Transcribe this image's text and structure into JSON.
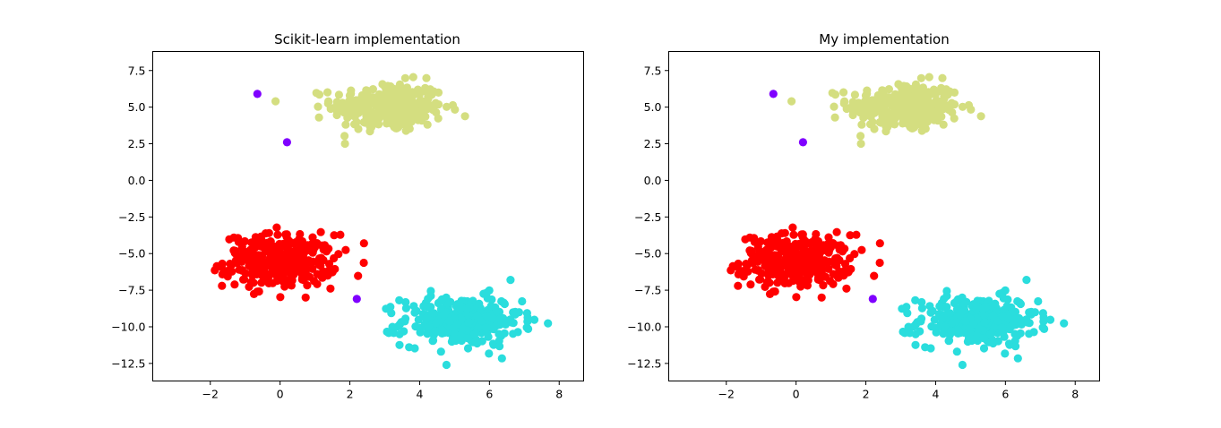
{
  "chart_data": [
    {
      "type": "scatter",
      "title": "Scikit-learn implementation",
      "xlabel": "",
      "ylabel": "",
      "xlim": [
        -3.65,
        8.7
      ],
      "ylim": [
        -13.7,
        8.8
      ],
      "xticks": [
        -2,
        0,
        2,
        4,
        6,
        8
      ],
      "yticks": [
        7.5,
        5.0,
        2.5,
        0.0,
        -2.5,
        -5.0,
        -7.5,
        -10.0,
        -12.5
      ],
      "xtick_labels": [
        "−2",
        "0",
        "2",
        "4",
        "6",
        "8"
      ],
      "ytick_labels": [
        "7.5",
        "5.0",
        "2.5",
        "0.0",
        "−2.5",
        "−5.0",
        "−7.5",
        "−10.0",
        "−12.5"
      ],
      "grid": false,
      "clusters": [
        {
          "color": "#d4de80",
          "center": [
            3.1,
            5.0
          ],
          "spread": [
            0.8,
            0.85
          ],
          "count": 300,
          "xrange": [
            -0.2,
            5.3
          ],
          "yrange": [
            2.5,
            7.9
          ]
        },
        {
          "color": "#ff0000",
          "center": [
            0.0,
            -5.5
          ],
          "spread": [
            0.8,
            0.9
          ],
          "count": 300,
          "xrange": [
            -3.2,
            2.5
          ],
          "yrange": [
            -8.0,
            -3.0
          ]
        },
        {
          "color": "#2adddd",
          "center": [
            5.2,
            -9.6
          ],
          "spread": [
            0.85,
            0.85
          ],
          "count": 300,
          "xrange": [
            2.6,
            8.1
          ],
          "yrange": [
            -12.6,
            -6.8
          ]
        }
      ],
      "outliers": {
        "color": "#7f00ff",
        "points": [
          [
            -0.65,
            5.9
          ],
          [
            0.2,
            2.6
          ],
          [
            2.2,
            -8.1
          ]
        ]
      }
    },
    {
      "type": "scatter",
      "title": "My implementation",
      "xlabel": "",
      "ylabel": "",
      "xlim": [
        -3.65,
        8.7
      ],
      "ylim": [
        -13.7,
        8.8
      ],
      "xticks": [
        -2,
        0,
        2,
        4,
        6,
        8
      ],
      "yticks": [
        7.5,
        5.0,
        2.5,
        0.0,
        -2.5,
        -5.0,
        -7.5,
        -10.0,
        -12.5
      ],
      "xtick_labels": [
        "−2",
        "0",
        "2",
        "4",
        "6",
        "8"
      ],
      "ytick_labels": [
        "7.5",
        "5.0",
        "2.5",
        "0.0",
        "−2.5",
        "−5.0",
        "−7.5",
        "−10.0",
        "−12.5"
      ],
      "grid": false,
      "clusters": [
        {
          "color": "#d4de80",
          "center": [
            3.1,
            5.0
          ],
          "spread": [
            0.8,
            0.85
          ],
          "count": 300,
          "xrange": [
            -0.2,
            5.3
          ],
          "yrange": [
            2.5,
            7.9
          ]
        },
        {
          "color": "#ff0000",
          "center": [
            0.0,
            -5.5
          ],
          "spread": [
            0.8,
            0.9
          ],
          "count": 300,
          "xrange": [
            -3.2,
            2.5
          ],
          "yrange": [
            -8.0,
            -3.0
          ]
        },
        {
          "color": "#2adddd",
          "center": [
            5.2,
            -9.6
          ],
          "spread": [
            0.85,
            0.85
          ],
          "count": 300,
          "xrange": [
            2.6,
            8.1
          ],
          "yrange": [
            -12.6,
            -6.8
          ]
        }
      ],
      "outliers": {
        "color": "#7f00ff",
        "points": [
          [
            -0.65,
            5.9
          ],
          [
            0.2,
            2.6
          ],
          [
            2.2,
            -8.1
          ]
        ]
      }
    }
  ]
}
